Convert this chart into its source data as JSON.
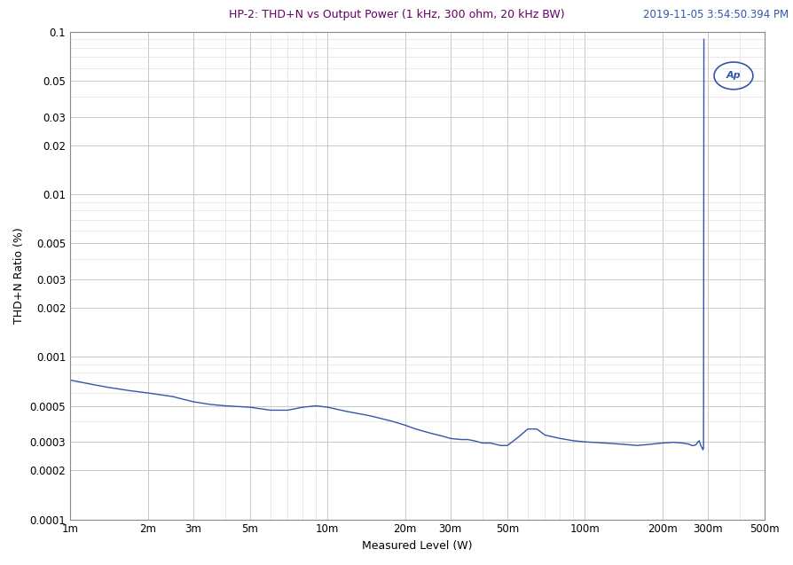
{
  "title": "HP-2: THD+N vs Output Power (1 kHz, 300 ohm, 20 kHz BW)",
  "timestamp": "2019-11-05 3:54:50.394 PM",
  "xlabel": "Measured Level (W)",
  "ylabel": "THD+N Ratio (%)",
  "title_color": "#660066",
  "line_color": "#3355aa",
  "timestamp_color": "#3355aa",
  "background_color": "#ffffff",
  "grid_color": "#c8c8c8",
  "grid_color_minor": "#e0e0e0",
  "x_ticks_labels": [
    "1m",
    "2m",
    "3m",
    "5m",
    "10m",
    "20m",
    "30m",
    "50m",
    "100m",
    "200m",
    "300m",
    "500m"
  ],
  "x_ticks_values": [
    0.001,
    0.002,
    0.003,
    0.005,
    0.01,
    0.02,
    0.03,
    0.05,
    0.1,
    0.2,
    0.3,
    0.5
  ],
  "y_ticks_labels": [
    "0.0001",
    "0.0002",
    "0.0003",
    "0.0005",
    "0.001",
    "0.002",
    "0.003",
    "0.005",
    "0.01",
    "0.02",
    "0.03",
    "0.05",
    "0.1"
  ],
  "y_ticks_values": [
    0.0001,
    0.0002,
    0.0003,
    0.0005,
    0.001,
    0.002,
    0.003,
    0.005,
    0.01,
    0.02,
    0.03,
    0.05,
    0.1
  ],
  "data_x": [
    0.001,
    0.0012,
    0.0014,
    0.0017,
    0.002,
    0.0025,
    0.003,
    0.0035,
    0.004,
    0.005,
    0.006,
    0.007,
    0.008,
    0.009,
    0.01,
    0.012,
    0.014,
    0.015,
    0.018,
    0.02,
    0.022,
    0.025,
    0.028,
    0.03,
    0.033,
    0.035,
    0.037,
    0.04,
    0.043,
    0.047,
    0.05,
    0.055,
    0.06,
    0.065,
    0.07,
    0.08,
    0.09,
    0.1,
    0.12,
    0.14,
    0.16,
    0.18,
    0.2,
    0.22,
    0.24,
    0.255,
    0.26,
    0.265,
    0.27,
    0.275,
    0.278,
    0.28,
    0.282,
    0.284,
    0.286,
    0.287,
    0.2875,
    0.288,
    0.289,
    0.29
  ],
  "data_y": [
    0.00072,
    0.00068,
    0.00065,
    0.00062,
    0.0006,
    0.00057,
    0.00053,
    0.00051,
    0.0005,
    0.00049,
    0.00047,
    0.00047,
    0.00049,
    0.0005,
    0.00049,
    0.00046,
    0.00044,
    0.00043,
    0.0004,
    0.00038,
    0.00036,
    0.00034,
    0.000325,
    0.000315,
    0.00031,
    0.00031,
    0.000305,
    0.000295,
    0.000295,
    0.000285,
    0.000285,
    0.00032,
    0.00036,
    0.00036,
    0.00033,
    0.000315,
    0.000305,
    0.0003,
    0.000295,
    0.00029,
    0.000285,
    0.00029,
    0.000295,
    0.000298,
    0.000295,
    0.00029,
    0.000285,
    0.000285,
    0.000288,
    0.0003,
    0.000305,
    0.000295,
    0.000285,
    0.000278,
    0.000275,
    0.00027,
    0.000268,
    0.00027,
    0.000275,
    0.09
  ]
}
